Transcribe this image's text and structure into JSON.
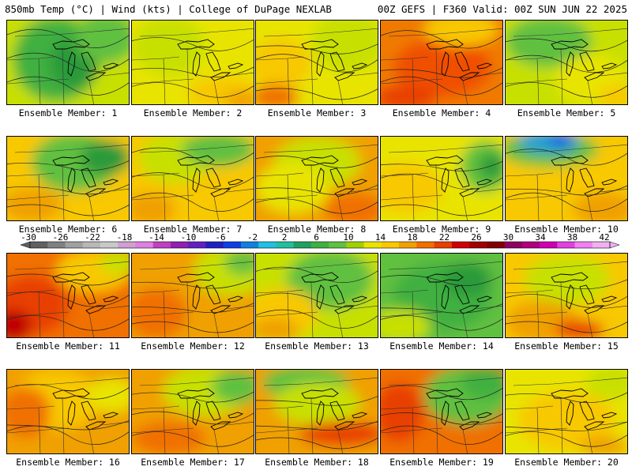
{
  "header": {
    "title_left": "850mb Temp (°C) | Wind (kts) | College of DuPage NEXLAB",
    "title_right": "00Z GEFS | F360 Valid: 00Z SUN JUN 22 2025"
  },
  "members": [
    {
      "label": "Ensemble Member: 1",
      "base": "#c8e000",
      "blobs": [
        [
          "#3fb040",
          0.4,
          0.45,
          0.35,
          0.5
        ],
        [
          "#2a9a3a",
          0.55,
          0.5,
          0.2,
          0.3
        ],
        [
          "#60c040",
          0.8,
          0.2,
          0.25,
          0.3
        ]
      ]
    },
    {
      "label": "Ensemble Member: 2",
      "base": "#e8e400",
      "blobs": [
        [
          "#c8e000",
          0.3,
          0.3,
          0.3,
          0.35
        ],
        [
          "#f8c800",
          0.75,
          0.85,
          0.3,
          0.2
        ],
        [
          "#f0a000",
          0.9,
          0.95,
          0.15,
          0.12
        ]
      ]
    },
    {
      "label": "Ensemble Member: 3",
      "base": "#e8e400",
      "blobs": [
        [
          "#c8e000",
          0.75,
          0.25,
          0.3,
          0.35
        ],
        [
          "#f8c800",
          0.2,
          0.5,
          0.25,
          0.3
        ],
        [
          "#f07000",
          0.15,
          0.9,
          0.2,
          0.15
        ]
      ]
    },
    {
      "label": "Ensemble Member: 4",
      "base": "#f07a00",
      "blobs": [
        [
          "#f05000",
          0.5,
          0.55,
          0.4,
          0.35
        ],
        [
          "#f8c800",
          0.65,
          0.1,
          0.3,
          0.2
        ],
        [
          "#e84000",
          0.2,
          0.9,
          0.25,
          0.15
        ]
      ]
    },
    {
      "label": "Ensemble Member: 5",
      "base": "#c8e000",
      "blobs": [
        [
          "#60c040",
          0.35,
          0.25,
          0.35,
          0.3
        ],
        [
          "#e8e400",
          0.7,
          0.7,
          0.3,
          0.3
        ],
        [
          "#f8c800",
          0.9,
          0.9,
          0.15,
          0.15
        ]
      ]
    },
    {
      "label": "Ensemble Member: 6",
      "base": "#f8c800",
      "blobs": [
        [
          "#60c040",
          0.55,
          0.3,
          0.35,
          0.35
        ],
        [
          "#2a9a3a",
          0.8,
          0.25,
          0.2,
          0.2
        ],
        [
          "#f0a000",
          0.2,
          0.8,
          0.25,
          0.2
        ]
      ]
    },
    {
      "label": "Ensemble Member: 7",
      "base": "#f8c800",
      "blobs": [
        [
          "#c8e000",
          0.35,
          0.25,
          0.3,
          0.3
        ],
        [
          "#60c040",
          0.7,
          0.15,
          0.3,
          0.2
        ],
        [
          "#f0a000",
          0.15,
          0.85,
          0.2,
          0.2
        ]
      ]
    },
    {
      "label": "Ensemble Member: 8",
      "base": "#f0a000",
      "blobs": [
        [
          "#c8e000",
          0.5,
          0.3,
          0.35,
          0.3
        ],
        [
          "#e8e400",
          0.3,
          0.6,
          0.3,
          0.3
        ],
        [
          "#f07000",
          0.8,
          0.85,
          0.25,
          0.2
        ]
      ]
    },
    {
      "label": "Ensemble Member: 9",
      "base": "#e8e400",
      "blobs": [
        [
          "#60c040",
          0.85,
          0.35,
          0.2,
          0.3
        ],
        [
          "#2a9a3a",
          0.9,
          0.35,
          0.1,
          0.15
        ],
        [
          "#f8c800",
          0.2,
          0.6,
          0.3,
          0.3
        ]
      ]
    },
    {
      "label": "Ensemble Member: 10",
      "base": "#f8c800",
      "blobs": [
        [
          "#60c040",
          0.35,
          0.15,
          0.4,
          0.2
        ],
        [
          "#20a0d0",
          0.35,
          0.05,
          0.25,
          0.15
        ],
        [
          "#1060e0",
          0.45,
          0.05,
          0.1,
          0.08
        ],
        [
          "#f0a000",
          0.8,
          0.85,
          0.25,
          0.2
        ]
      ]
    },
    {
      "label": "Ensemble Member: 11",
      "base": "#f07000",
      "blobs": [
        [
          "#e84000",
          0.2,
          0.6,
          0.3,
          0.35
        ],
        [
          "#c00000",
          0.05,
          0.85,
          0.15,
          0.2
        ],
        [
          "#f8c800",
          0.7,
          0.2,
          0.3,
          0.25
        ],
        [
          "#c8e000",
          0.9,
          0.1,
          0.15,
          0.15
        ]
      ]
    },
    {
      "label": "Ensemble Member: 12",
      "base": "#f0a000",
      "blobs": [
        [
          "#c8e000",
          0.8,
          0.2,
          0.3,
          0.3
        ],
        [
          "#60c040",
          0.9,
          0.1,
          0.15,
          0.15
        ],
        [
          "#f07000",
          0.2,
          0.7,
          0.25,
          0.3
        ]
      ]
    },
    {
      "label": "Ensemble Member: 13",
      "base": "#c8e000",
      "blobs": [
        [
          "#60c040",
          0.6,
          0.3,
          0.35,
          0.35
        ],
        [
          "#f8c800",
          0.2,
          0.7,
          0.3,
          0.3
        ],
        [
          "#f0a000",
          0.15,
          0.9,
          0.2,
          0.15
        ]
      ]
    },
    {
      "label": "Ensemble Member: 14",
      "base": "#60c040",
      "blobs": [
        [
          "#3fb040",
          0.5,
          0.5,
          0.4,
          0.4
        ],
        [
          "#c8e000",
          0.15,
          0.85,
          0.25,
          0.2
        ],
        [
          "#2a9a3a",
          0.7,
          0.3,
          0.2,
          0.2
        ]
      ]
    },
    {
      "label": "Ensemble Member: 15",
      "base": "#f8c800",
      "blobs": [
        [
          "#c8e000",
          0.5,
          0.3,
          0.35,
          0.3
        ],
        [
          "#f0a000",
          0.3,
          0.8,
          0.3,
          0.25
        ],
        [
          "#e84000",
          0.6,
          0.9,
          0.2,
          0.12
        ]
      ]
    },
    {
      "label": "Ensemble Member: 16",
      "base": "#f0a000",
      "blobs": [
        [
          "#f8c800",
          0.4,
          0.35,
          0.35,
          0.35
        ],
        [
          "#f07000",
          0.15,
          0.5,
          0.2,
          0.3
        ],
        [
          "#e8e400",
          0.85,
          0.3,
          0.2,
          0.2
        ]
      ]
    },
    {
      "label": "Ensemble Member: 17",
      "base": "#f0a000",
      "blobs": [
        [
          "#c8e000",
          0.6,
          0.25,
          0.35,
          0.3
        ],
        [
          "#60c040",
          0.85,
          0.2,
          0.2,
          0.2
        ],
        [
          "#f07000",
          0.3,
          0.8,
          0.3,
          0.2
        ]
      ]
    },
    {
      "label": "Ensemble Member: 18",
      "base": "#f0a000",
      "blobs": [
        [
          "#60c040",
          0.4,
          0.15,
          0.35,
          0.2
        ],
        [
          "#c8e000",
          0.5,
          0.4,
          0.35,
          0.25
        ],
        [
          "#e84000",
          0.7,
          0.75,
          0.35,
          0.15
        ]
      ]
    },
    {
      "label": "Ensemble Member: 19",
      "base": "#f07000",
      "blobs": [
        [
          "#60c040",
          0.7,
          0.3,
          0.35,
          0.35
        ],
        [
          "#3fb040",
          0.85,
          0.15,
          0.2,
          0.2
        ],
        [
          "#e84000",
          0.15,
          0.5,
          0.2,
          0.35
        ]
      ]
    },
    {
      "label": "Ensemble Member: 20",
      "base": "#e8e400",
      "blobs": [
        [
          "#f8c800",
          0.5,
          0.6,
          0.4,
          0.35
        ],
        [
          "#c8e000",
          0.85,
          0.15,
          0.2,
          0.2
        ],
        [
          "#f0a000",
          0.8,
          0.9,
          0.2,
          0.12
        ]
      ]
    }
  ],
  "colorbar": {
    "ticks": [
      "-30",
      "-26",
      "-22",
      "-18",
      "-14",
      "-10",
      "-6",
      "-2",
      "2",
      "6",
      "10",
      "14",
      "18",
      "22",
      "26",
      "30",
      "34",
      "38",
      "42"
    ],
    "colors": [
      "#606060",
      "#808080",
      "#a0a0a0",
      "#b8b8b8",
      "#c8c8c8",
      "#d0a0d0",
      "#e080e0",
      "#c040c0",
      "#9020b0",
      "#6020c0",
      "#2020c0",
      "#1040e0",
      "#1080e0",
      "#20c0e0",
      "#20c0a0",
      "#20a060",
      "#3fb040",
      "#60c040",
      "#a0d000",
      "#e8e400",
      "#f8c800",
      "#f0a000",
      "#f07000",
      "#e84000",
      "#d00000",
      "#a00000",
      "#800000",
      "#900060",
      "#b00080",
      "#d000b0",
      "#e040e0",
      "#f080f0",
      "#f0b0f0"
    ]
  }
}
